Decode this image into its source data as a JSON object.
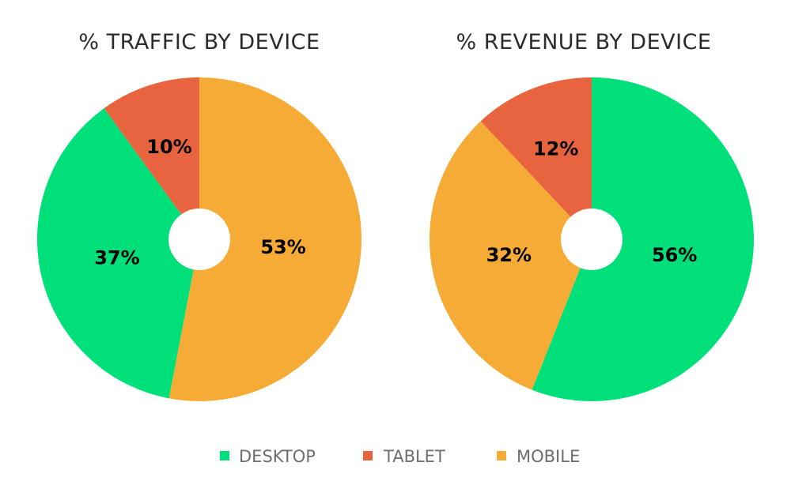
{
  "chart_data": [
    {
      "type": "pie",
      "title": "% TRAFFIC BY DEVICE",
      "slices": [
        {
          "name": "MOBILE",
          "value": 53,
          "label": "53%"
        },
        {
          "name": "DESKTOP",
          "value": 37,
          "label": "37%"
        },
        {
          "name": "TABLET",
          "value": 10,
          "label": "10%"
        }
      ]
    },
    {
      "type": "pie",
      "title": "% REVENUE BY DEVICE",
      "slices": [
        {
          "name": "DESKTOP",
          "value": 56,
          "label": "56%"
        },
        {
          "name": "MOBILE",
          "value": 32,
          "label": "32%"
        },
        {
          "name": "TABLET",
          "value": 12,
          "label": "12%"
        }
      ]
    }
  ],
  "legend": [
    {
      "name": "DESKTOP",
      "label": "DESKTOP",
      "color": "#00e07a"
    },
    {
      "name": "TABLET",
      "label": "TABLET",
      "color": "#e8643f"
    },
    {
      "name": "MOBILE",
      "label": "MOBILE",
      "color": "#f5ab35"
    }
  ],
  "colors": {
    "DESKTOP": "#00e07a",
    "TABLET": "#e8643f",
    "MOBILE": "#f5ab35",
    "background": "#ffffff"
  }
}
